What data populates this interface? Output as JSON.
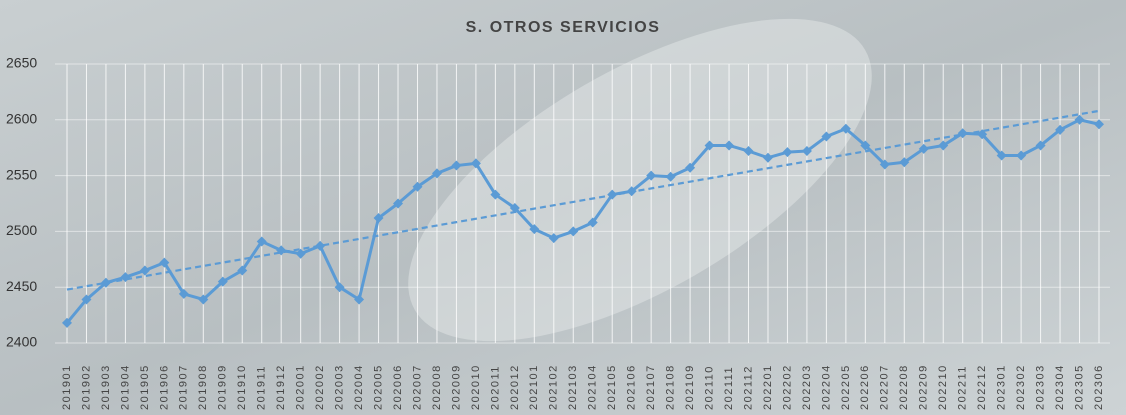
{
  "chart_data": {
    "type": "line",
    "title": "S. OTROS SERVICIOS",
    "categories": [
      "201901",
      "201902",
      "201903",
      "201904",
      "201905",
      "201906",
      "201907",
      "201908",
      "201909",
      "201910",
      "201911",
      "201912",
      "202001",
      "202002",
      "202003",
      "202004",
      "202005",
      "202006",
      "202007",
      "202008",
      "202009",
      "202010",
      "202011",
      "202012",
      "202101",
      "202102",
      "202103",
      "202104",
      "202105",
      "202106",
      "202107",
      "202108",
      "202109",
      "202110",
      "202111",
      "202112",
      "202201",
      "202202",
      "202203",
      "202204",
      "202205",
      "202206",
      "202207",
      "202208",
      "202209",
      "202210",
      "202211",
      "202212",
      "202301",
      "202302",
      "202303",
      "202304",
      "202305",
      "202306"
    ],
    "values": [
      2418,
      2439,
      2454,
      2459,
      2465,
      2472,
      2444,
      2439,
      2455,
      2465,
      2491,
      2483,
      2480,
      2487,
      2450,
      2439,
      2512,
      2525,
      2540,
      2552,
      2559,
      2561,
      2533,
      2521,
      2502,
      2494,
      2500,
      2508,
      2533,
      2536,
      2550,
      2549,
      2557,
      2577,
      2577,
      2572,
      2566,
      2571,
      2572,
      2585,
      2592,
      2577,
      2560,
      2562,
      2574,
      2577,
      2588,
      2587,
      2568,
      2568,
      2577,
      2591,
      2600,
      2596
    ],
    "color": "#5b9bd5",
    "ylim": [
      2400,
      2650
    ],
    "yticks": [
      2400,
      2450,
      2500,
      2550,
      2600,
      2650
    ],
    "grid": true,
    "trendline": true
  }
}
